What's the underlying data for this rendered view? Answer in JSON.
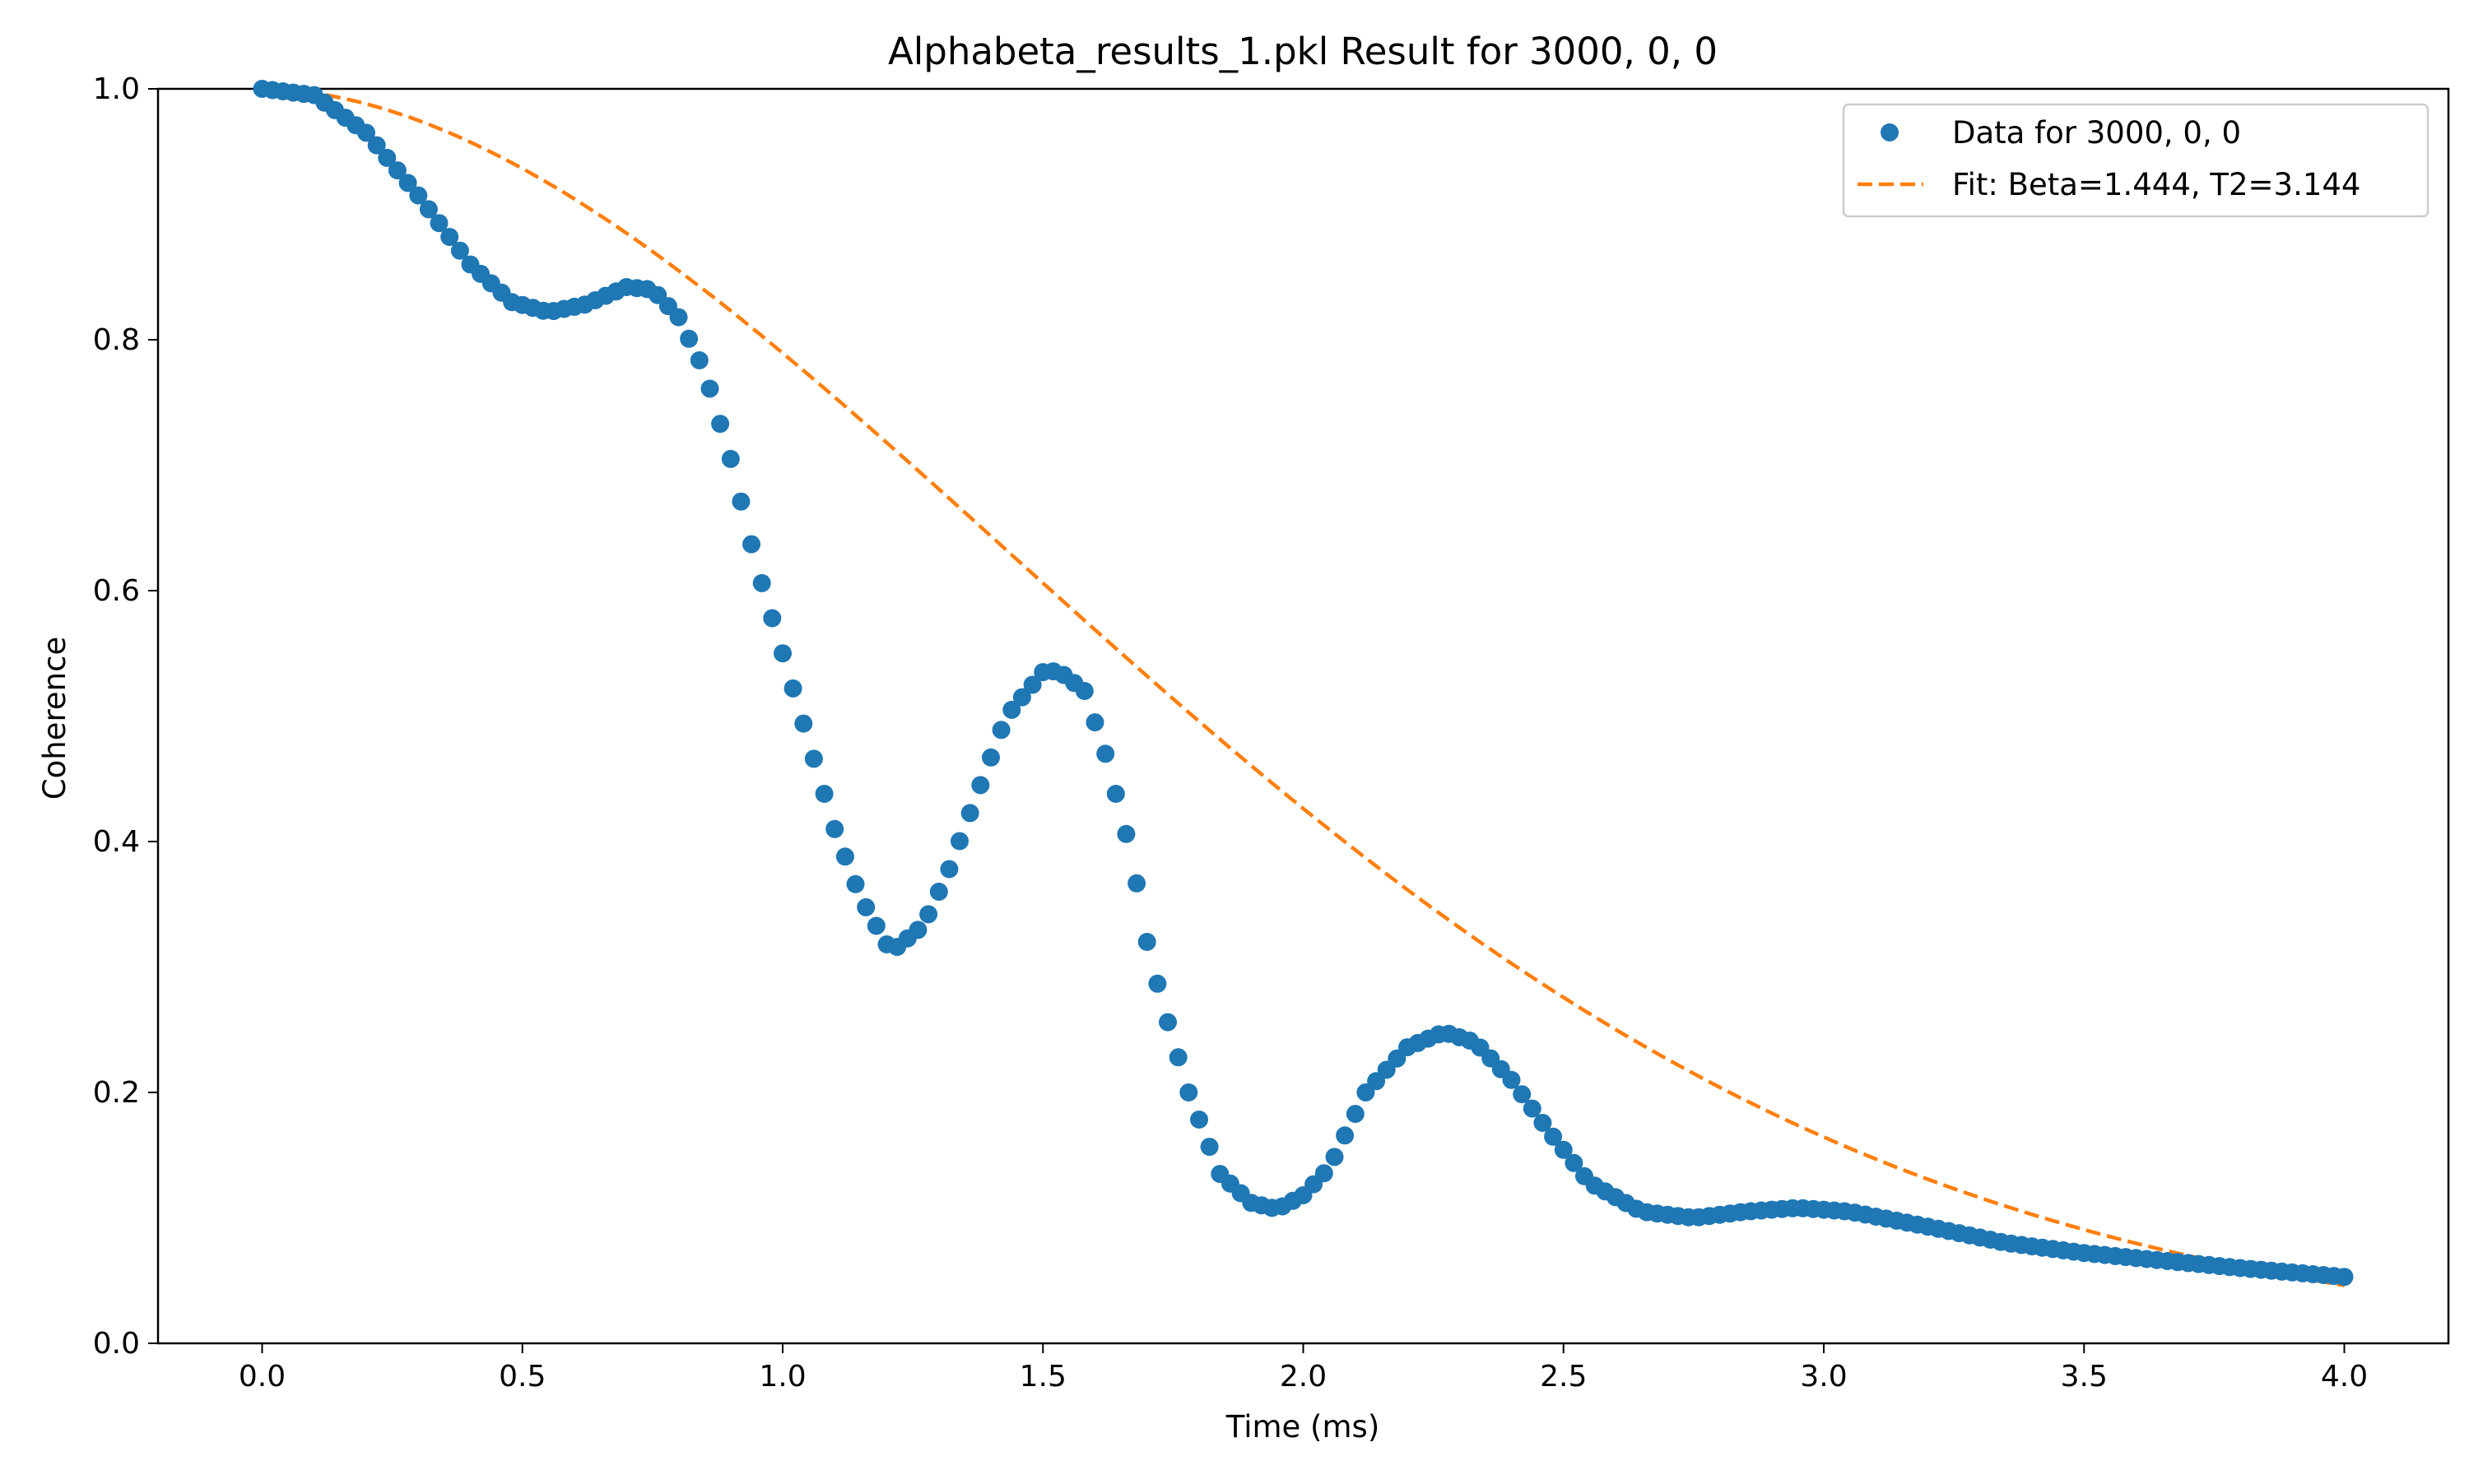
{
  "chart_data": {
    "type": "scatter",
    "title": "Alphabeta_results_1.pkl Result for 3000, 0, 0",
    "xlabel": "Time (ms)",
    "ylabel": "Coherence",
    "xlim": [
      -0.2,
      4.2
    ],
    "ylim": [
      0.0,
      1.0
    ],
    "x_ticks": [
      {
        "value": 0.0,
        "label": "0.0"
      },
      {
        "value": 0.5,
        "label": "0.5"
      },
      {
        "value": 1.0,
        "label": "1.0"
      },
      {
        "value": 1.5,
        "label": "1.5"
      },
      {
        "value": 2.0,
        "label": "2.0"
      },
      {
        "value": 2.5,
        "label": "2.5"
      },
      {
        "value": 3.0,
        "label": "3.0"
      },
      {
        "value": 3.5,
        "label": "3.5"
      },
      {
        "value": 4.0,
        "label": "4.0"
      }
    ],
    "y_ticks": [
      {
        "value": 0.0,
        "label": "0.0"
      },
      {
        "value": 0.2,
        "label": "0.2"
      },
      {
        "value": 0.4,
        "label": "0.4"
      },
      {
        "value": 0.6,
        "label": "0.6"
      },
      {
        "value": 0.8,
        "label": "0.8"
      },
      {
        "value": 1.0,
        "label": "1.0"
      }
    ],
    "grid": false,
    "legend_position": "top-right",
    "series": [
      {
        "name": "Data for 3000, 0, 0",
        "kind": "scatter",
        "color": "#1f77b4",
        "x_range": [
          0.0,
          4.0
        ],
        "n_points": 201,
        "keypoints": [
          [
            0.0,
            1.0
          ],
          [
            0.1,
            0.995
          ],
          [
            0.2,
            0.965
          ],
          [
            0.3,
            0.915
          ],
          [
            0.4,
            0.86
          ],
          [
            0.48,
            0.83
          ],
          [
            0.55,
            0.822
          ],
          [
            0.62,
            0.828
          ],
          [
            0.7,
            0.842
          ],
          [
            0.75,
            0.84
          ],
          [
            0.8,
            0.818
          ],
          [
            0.85,
            0.775
          ],
          [
            0.9,
            0.705
          ],
          [
            0.95,
            0.62
          ],
          [
            1.0,
            0.55
          ],
          [
            1.05,
            0.48
          ],
          [
            1.1,
            0.41
          ],
          [
            1.15,
            0.355
          ],
          [
            1.2,
            0.318
          ],
          [
            1.22,
            0.316
          ],
          [
            1.27,
            0.333
          ],
          [
            1.32,
            0.378
          ],
          [
            1.38,
            0.445
          ],
          [
            1.43,
            0.5
          ],
          [
            1.5,
            0.535
          ],
          [
            1.53,
            0.536
          ],
          [
            1.58,
            0.52
          ],
          [
            1.62,
            0.47
          ],
          [
            1.67,
            0.39
          ],
          [
            1.7,
            0.32
          ],
          [
            1.73,
            0.27
          ],
          [
            1.78,
            0.2
          ],
          [
            1.84,
            0.135
          ],
          [
            1.9,
            0.112
          ],
          [
            1.95,
            0.107
          ],
          [
            2.0,
            0.118
          ],
          [
            2.05,
            0.14
          ],
          [
            2.12,
            0.2
          ],
          [
            2.2,
            0.236
          ],
          [
            2.27,
            0.248
          ],
          [
            2.33,
            0.24
          ],
          [
            2.4,
            0.21
          ],
          [
            2.47,
            0.17
          ],
          [
            2.55,
            0.128
          ],
          [
            2.65,
            0.105
          ],
          [
            2.75,
            0.1
          ],
          [
            2.85,
            0.105
          ],
          [
            2.95,
            0.108
          ],
          [
            3.05,
            0.105
          ],
          [
            3.2,
            0.093
          ],
          [
            3.35,
            0.08
          ],
          [
            3.5,
            0.072
          ],
          [
            3.65,
            0.066
          ],
          [
            3.8,
            0.06
          ],
          [
            4.0,
            0.053
          ]
        ]
      },
      {
        "name": "Fit: Beta=1.444, T2=3.144",
        "kind": "line",
        "style": "dashed",
        "color": "#ff7f0e",
        "function": "exp(-(t/T2)^Beta) scaled",
        "params": {
          "beta": 1.444,
          "t2": 3.144
        },
        "x_range": [
          0.0,
          4.0
        ]
      }
    ]
  }
}
